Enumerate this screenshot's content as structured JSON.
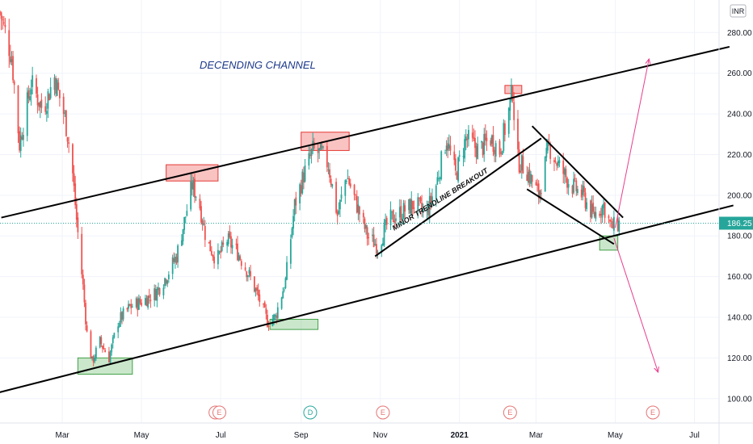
{
  "chart_data": {
    "type": "candlestick",
    "title": "DECENDING CHANNEL",
    "currency": "INR",
    "last_price": "186.25",
    "ylim": [
      88,
      296
    ],
    "y_ticks": [
      100,
      120,
      140,
      160,
      180,
      200,
      220,
      240,
      260,
      280
    ],
    "y_tick_labels": [
      "100.00",
      "120.00",
      "140.00",
      "160.00",
      "180.00",
      "200.00",
      "220.00",
      "240.00",
      "260.00",
      "280.00"
    ],
    "x_range": [
      "2020-01-13",
      "2021-07-20"
    ],
    "x_ticks": [
      {
        "date": "2020-03-01",
        "label": "Mar",
        "bold": false
      },
      {
        "date": "2020-05-01",
        "label": "May",
        "bold": false
      },
      {
        "date": "2020-07-01",
        "label": "Jul",
        "bold": false
      },
      {
        "date": "2020-09-01",
        "label": "Sep",
        "bold": false
      },
      {
        "date": "2020-11-01",
        "label": "Nov",
        "bold": false
      },
      {
        "date": "2021-01-01",
        "label": "2021",
        "bold": true
      },
      {
        "date": "2021-03-01",
        "label": "Mar",
        "bold": false
      },
      {
        "date": "2021-05-01",
        "label": "May",
        "bold": false
      },
      {
        "date": "2021-07-01",
        "label": "Jul",
        "bold": false
      }
    ],
    "price_path": [
      [
        "2020-01-13",
        290
      ],
      [
        "2020-01-22",
        268
      ],
      [
        "2020-01-28",
        225
      ],
      [
        "2020-02-06",
        255
      ],
      [
        "2020-02-15",
        242
      ],
      [
        "2020-02-24",
        258
      ],
      [
        "2020-03-03",
        238
      ],
      [
        "2020-03-08",
        218
      ],
      [
        "2020-03-12",
        188
      ],
      [
        "2020-03-17",
        155
      ],
      [
        "2020-03-20",
        132
      ],
      [
        "2020-03-24",
        118
      ],
      [
        "2020-03-30",
        128
      ],
      [
        "2020-04-06",
        120
      ],
      [
        "2020-04-13",
        138
      ],
      [
        "2020-04-22",
        145
      ],
      [
        "2020-05-02",
        148
      ],
      [
        "2020-05-12",
        152
      ],
      [
        "2020-05-20",
        160
      ],
      [
        "2020-05-28",
        170
      ],
      [
        "2020-06-04",
        190
      ],
      [
        "2020-06-09",
        205
      ],
      [
        "2020-06-14",
        198
      ],
      [
        "2020-06-20",
        178
      ],
      [
        "2020-06-28",
        168
      ],
      [
        "2020-07-06",
        178
      ],
      [
        "2020-07-14",
        172
      ],
      [
        "2020-07-22",
        162
      ],
      [
        "2020-07-30",
        150
      ],
      [
        "2020-08-06",
        138
      ],
      [
        "2020-08-12",
        140
      ],
      [
        "2020-08-20",
        158
      ],
      [
        "2020-08-27",
        195
      ],
      [
        "2020-09-03",
        210
      ],
      [
        "2020-09-10",
        222
      ],
      [
        "2020-09-17",
        220
      ],
      [
        "2020-09-22",
        215
      ],
      [
        "2020-09-29",
        190
      ],
      [
        "2020-10-06",
        210
      ],
      [
        "2020-10-14",
        195
      ],
      [
        "2020-10-22",
        180
      ],
      [
        "2020-10-30",
        175
      ],
      [
        "2020-11-08",
        188
      ],
      [
        "2020-11-18",
        192
      ],
      [
        "2020-11-28",
        196
      ],
      [
        "2020-12-06",
        190
      ],
      [
        "2020-12-14",
        205
      ],
      [
        "2020-12-22",
        228
      ],
      [
        "2020-12-29",
        210
      ],
      [
        "2021-01-06",
        228
      ],
      [
        "2021-01-16",
        222
      ],
      [
        "2021-01-25",
        228
      ],
      [
        "2021-02-01",
        222
      ],
      [
        "2021-02-07",
        238
      ],
      [
        "2021-02-11",
        252
      ],
      [
        "2021-02-14",
        218
      ],
      [
        "2021-02-22",
        212
      ],
      [
        "2021-03-03",
        200
      ],
      [
        "2021-03-11",
        224
      ],
      [
        "2021-03-18",
        215
      ],
      [
        "2021-03-28",
        205
      ],
      [
        "2021-04-06",
        200
      ],
      [
        "2021-04-14",
        190
      ],
      [
        "2021-04-22",
        195
      ],
      [
        "2021-04-28",
        184
      ],
      [
        "2021-05-04",
        186.25
      ]
    ],
    "zones_red": [
      {
        "x1": "2020-05-20",
        "x2": "2020-06-29",
        "y1": 207,
        "y2": 215
      },
      {
        "x1": "2020-09-01",
        "x2": "2020-10-08",
        "y1": 222,
        "y2": 231
      },
      {
        "x1": "2021-02-05",
        "x2": "2021-02-18",
        "y1": 250,
        "y2": 254
      }
    ],
    "zones_green": [
      {
        "x1": "2020-03-13",
        "x2": "2020-04-24",
        "y1": 112,
        "y2": 120
      },
      {
        "x1": "2020-08-08",
        "x2": "2020-09-14",
        "y1": 134,
        "y2": 139
      },
      {
        "x1": "2021-04-19",
        "x2": "2021-05-03",
        "y1": 173,
        "y2": 180
      }
    ],
    "lines": [
      {
        "name": "upper-channel-line",
        "x1": "2020-01-14",
        "y1": 189,
        "x2": "2021-07-28",
        "y2": 273,
        "color": "#000000",
        "width": 2
      },
      {
        "name": "lower-channel-line",
        "x1": "2020-01-12",
        "y1": 103,
        "x2": "2021-07-31",
        "y2": 195,
        "color": "#000000",
        "width": 2
      },
      {
        "name": "minor-trendline",
        "x1": "2020-10-28",
        "y1": 170,
        "x2": "2021-03-05",
        "y2": 228,
        "color": "#000000",
        "width": 2
      },
      {
        "name": "wedge-upper-line",
        "x1": "2021-02-26",
        "y1": 234,
        "x2": "2021-05-07",
        "y2": 189,
        "color": "#000000",
        "width": 2
      },
      {
        "name": "wedge-lower-line",
        "x1": "2021-02-22",
        "y1": 203,
        "x2": "2021-04-30",
        "y2": 176,
        "color": "#000000",
        "width": 2
      }
    ],
    "arrows": [
      {
        "name": "target-up-arrow",
        "x1": "2021-05-01",
        "y1": 184,
        "x2": "2021-05-27",
        "y2": 267,
        "color": "#e83e8c"
      },
      {
        "name": "target-down-arrow",
        "x1": "2021-04-30",
        "y1": 179,
        "x2": "2021-06-03",
        "y2": 113,
        "color": "#e83e8c"
      }
    ],
    "annotations": [
      {
        "name": "minor-trendline-label",
        "text": "MINOR TRENDLINE BREAKOUT",
        "x": "2020-12-18",
        "y": 197,
        "angle": -32
      }
    ],
    "event_badges": [
      {
        "letter": "E",
        "date": "2020-06-27",
        "color": "#e57373"
      },
      {
        "letter": "E",
        "date": "2020-06-30",
        "color": "#e57373"
      },
      {
        "letter": "D",
        "date": "2020-09-08",
        "color": "#26a69a"
      },
      {
        "letter": "E",
        "date": "2020-11-03",
        "color": "#e57373"
      },
      {
        "letter": "E",
        "date": "2021-02-09",
        "color": "#e57373"
      },
      {
        "letter": "E",
        "date": "2021-05-30",
        "color": "#e57373"
      }
    ],
    "colors": {
      "up": "#26a69a",
      "down": "#ef5350",
      "grid": "#f0f3fa",
      "axis": "#e0e3eb"
    }
  }
}
